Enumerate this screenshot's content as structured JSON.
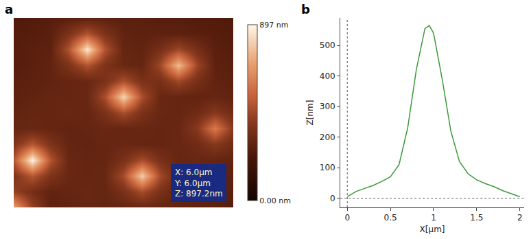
{
  "chart_data": [
    {
      "type": "heatmap",
      "panel_label": "a",
      "x": [
        0,
        0.5,
        1,
        1.5,
        2,
        2.5,
        3,
        3.5,
        4,
        4.5,
        5,
        5.5,
        6
      ],
      "y": [
        0,
        0.5,
        1,
        1.5,
        2,
        2.5,
        3,
        3.5,
        4,
        4.5,
        5,
        5.5,
        6
      ],
      "z": [
        [
          700,
          427,
          280,
          290,
          300,
          290,
          300,
          310,
          300,
          290,
          280,
          270,
          260
        ],
        [
          427,
          343,
          290,
          300,
          310,
          300,
          358,
          462,
          358,
          300,
          290,
          280,
          270
        ],
        [
          372,
          493,
          372,
          310,
          300,
          310,
          462,
          800,
          462,
          310,
          300,
          290,
          280
        ],
        [
          493,
          890,
          493,
          310,
          300,
          300,
          358,
          462,
          358,
          300,
          310,
          300,
          290
        ],
        [
          372,
          493,
          372,
          300,
          290,
          300,
          310,
          300,
          300,
          310,
          328,
          392,
          328
        ],
        [
          300,
          310,
          300,
          290,
          300,
          310,
          300,
          310,
          300,
          310,
          392,
          600,
          392
        ],
        [
          290,
          300,
          300,
          310,
          300,
          361,
          469,
          361,
          310,
          300,
          328,
          392,
          328
        ],
        [
          280,
          290,
          300,
          300,
          310,
          469,
          820,
          469,
          310,
          300,
          290,
          300,
          290
        ],
        [
          270,
          280,
          290,
          300,
          310,
          361,
          469,
          361,
          352,
          448,
          352,
          290,
          280
        ],
        [
          260,
          270,
          290,
          367,
          483,
          367,
          310,
          300,
          448,
          760,
          448,
          280,
          270
        ],
        [
          260,
          270,
          280,
          483,
          860,
          483,
          300,
          290,
          352,
          448,
          352,
          270,
          260
        ],
        [
          250,
          260,
          270,
          367,
          483,
          367,
          290,
          280,
          280,
          280,
          270,
          260,
          250
        ],
        [
          240,
          250,
          260,
          270,
          280,
          280,
          270,
          270,
          260,
          260,
          250,
          250,
          240
        ]
      ],
      "xlim": [
        0,
        6
      ],
      "ylim": [
        0,
        6
      ],
      "tick_labels": false,
      "colorbar": {
        "range": [
          0,
          897.2
        ],
        "ticks": [
          {
            "value": 0,
            "label": "0.00 nm"
          },
          {
            "value": 897,
            "label": "897 nm"
          }
        ]
      },
      "annotation": [
        "X: 6.0μm",
        "Y: 6.0μm",
        "Z: 897.2nm"
      ]
    },
    {
      "type": "line",
      "panel_label": "b",
      "x": [
        0,
        0.1,
        0.2,
        0.3,
        0.4,
        0.5,
        0.6,
        0.7,
        0.8,
        0.9,
        0.95,
        1.0,
        1.1,
        1.2,
        1.3,
        1.4,
        1.5,
        1.6,
        1.7,
        1.8,
        1.9,
        2.0
      ],
      "values": [
        5,
        22,
        32,
        42,
        55,
        70,
        110,
        230,
        420,
        555,
        565,
        540,
        390,
        220,
        120,
        80,
        60,
        48,
        38,
        25,
        15,
        5
      ],
      "color": "#3a9a3a",
      "xlabel": "X[μm]",
      "ylabel": "Z[nm]",
      "xlim": [
        -0.08,
        2.05
      ],
      "ylim": [
        -30,
        590
      ],
      "xticks": [
        0,
        0.5,
        1,
        1.5,
        2
      ],
      "yticks": [
        0,
        100,
        200,
        300,
        400,
        500
      ],
      "grid": false
    }
  ]
}
